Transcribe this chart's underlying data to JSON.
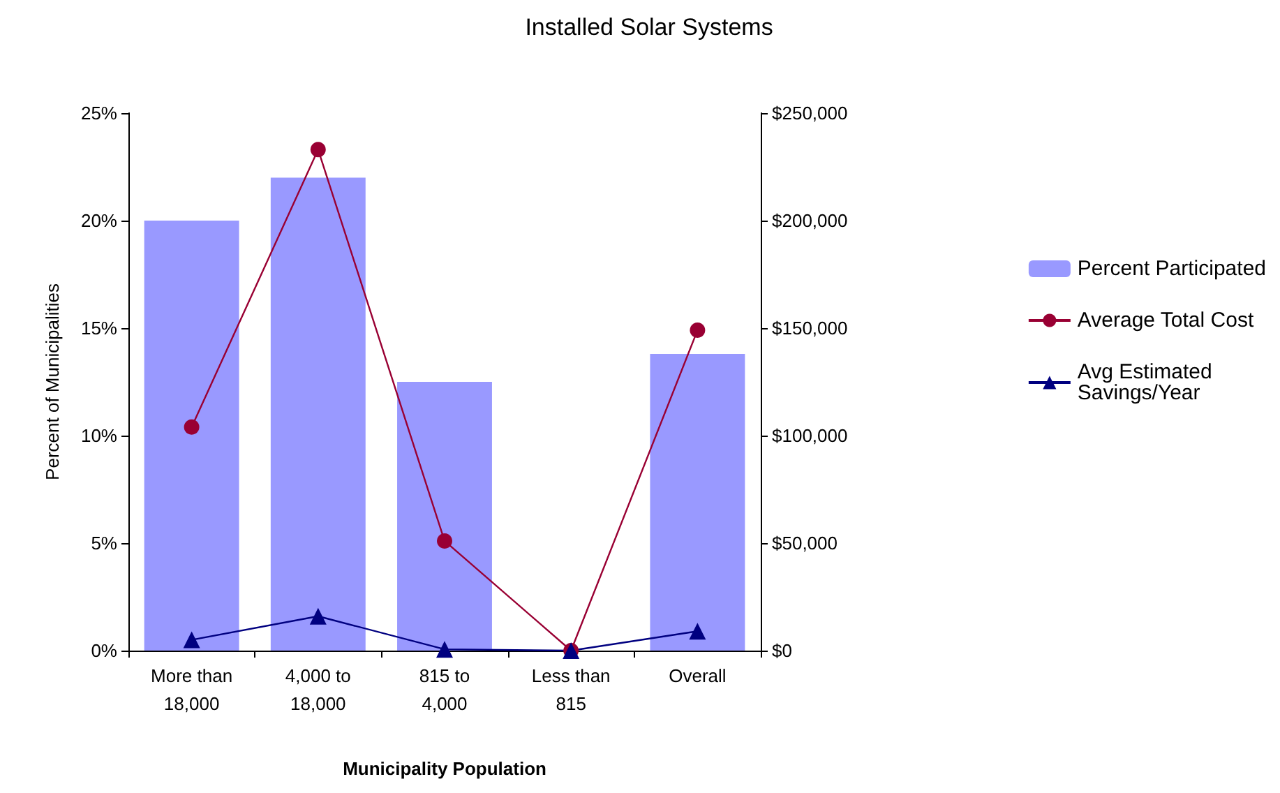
{
  "chart_data": {
    "type": "bar",
    "title": "Installed Solar Systems",
    "xlabel": "Municipality Population",
    "ylabel": "Percent of Municipalities",
    "categories": [
      "More than 18,000",
      "4,000 to 18,000",
      "815 to 4,000",
      "Less than 815",
      "Overall"
    ],
    "series": [
      {
        "name": "Percent Participated",
        "color": "#9999ff",
        "values": [
          20,
          22,
          12.5,
          0,
          13.8
        ]
      },
      {
        "name": "Average Total Cost",
        "type": "line",
        "axis": "y2",
        "color": "#990033",
        "marker": "circle",
        "values": [
          104000,
          233000,
          51000,
          0,
          149000
        ]
      },
      {
        "name": "Avg Estimated Savings/Year",
        "type": "line",
        "axis": "y2",
        "color": "#000080",
        "marker": "triangle",
        "values": [
          5000,
          16000,
          600,
          0,
          9000
        ]
      }
    ],
    "ylim": [
      0,
      25
    ],
    "yticks": [
      {
        "value": 0,
        "label": "0%"
      },
      {
        "value": 5,
        "label": "5%"
      },
      {
        "value": 10,
        "label": "10%"
      },
      {
        "value": 15,
        "label": "15%"
      },
      {
        "value": 20,
        "label": "20%"
      },
      {
        "value": 25,
        "label": "25%"
      }
    ],
    "y2lim": [
      0,
      250000
    ],
    "y2ticks": [
      {
        "value": 0,
        "label": "$0"
      },
      {
        "value": 50000,
        "label": "$50,000"
      },
      {
        "value": 100000,
        "label": "$100,000"
      },
      {
        "value": 150000,
        "label": "$150,000"
      },
      {
        "value": 200000,
        "label": "$200,000"
      },
      {
        "value": 250000,
        "label": "$250,000"
      }
    ],
    "legend": "right",
    "grid": false,
    "line_style": "solid"
  }
}
